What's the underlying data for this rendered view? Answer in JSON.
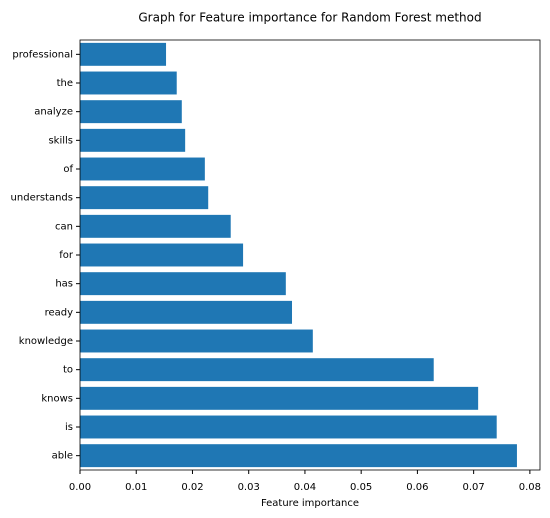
{
  "chart_data": {
    "type": "barh",
    "title": "Graph for Feature importance for Random Forest method",
    "xlabel": "Feature importance",
    "categories": [
      "professional",
      "the",
      "analyze",
      "skills",
      "of",
      "understands",
      "can",
      "for",
      "has",
      "ready",
      "knowledge",
      "to",
      "knows",
      "is",
      "able"
    ],
    "values": [
      0.0153,
      0.0172,
      0.0181,
      0.0187,
      0.0222,
      0.0228,
      0.0268,
      0.029,
      0.0366,
      0.0377,
      0.0414,
      0.0629,
      0.0708,
      0.0741,
      0.0777
    ],
    "color": "#1f77b4",
    "xlim": [
      0,
      0.0818
    ],
    "xticks": [
      {
        "value": 0,
        "label": "0.00"
      },
      {
        "value": 0.01,
        "label": "0.01"
      },
      {
        "value": 0.02,
        "label": "0.02"
      },
      {
        "value": 0.03,
        "label": "0.03"
      },
      {
        "value": 0.04,
        "label": "0.04"
      },
      {
        "value": 0.05,
        "label": "0.05"
      },
      {
        "value": 0.06,
        "label": "0.06"
      },
      {
        "value": 0.07,
        "label": "0.07"
      },
      {
        "value": 0.08,
        "label": "0.08"
      }
    ],
    "grid": false
  }
}
